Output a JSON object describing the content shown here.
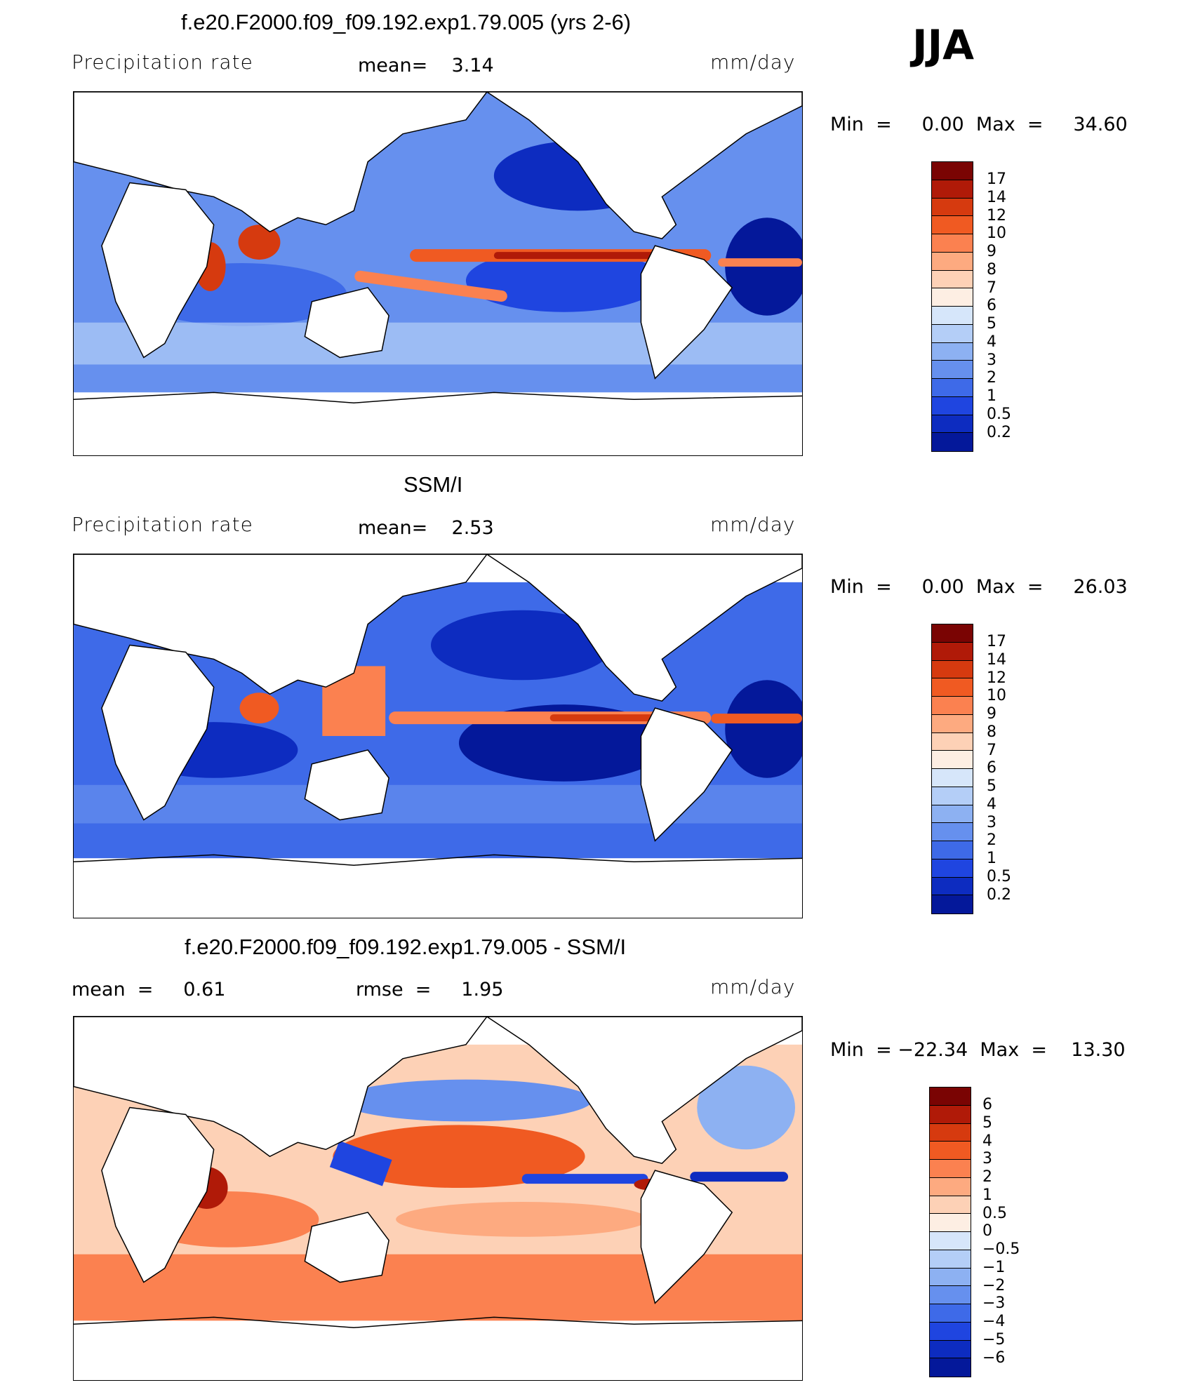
{
  "season": "JJA",
  "panels": [
    {
      "title": "f.e20.F2000.f09_f09.192.exp1.79.005 (yrs 2-6)",
      "left_label": "Precipitation  rate",
      "mid_label": "mean=    3.14",
      "right_label": "mm/day",
      "minmax": "Min  =     0.00  Max  =     34.60",
      "colorbar": {
        "colors": [
          "#7a0403",
          "#b01a08",
          "#d63a0f",
          "#f05a22",
          "#fb8150",
          "#fdaa80",
          "#fdd1b6",
          "#fdeee3",
          "#d6e6fa",
          "#b4cef7",
          "#8db1f2",
          "#6690ee",
          "#3e6ae8",
          "#1f45e0",
          "#0d2cc0",
          "#04189a"
        ],
        "ticks": [
          "17",
          "14",
          "12",
          "10",
          "9",
          "8",
          "7",
          "6",
          "5",
          "4",
          "3",
          "2",
          "1",
          "0.5",
          "0.2"
        ]
      }
    },
    {
      "title": "SSM/I",
      "left_label": "Precipitation  rate",
      "mid_label": "mean=    2.53",
      "right_label": "mm/day",
      "minmax": "Min  =     0.00  Max  =     26.03",
      "colorbar": {
        "colors": [
          "#7a0403",
          "#b01a08",
          "#d63a0f",
          "#f05a22",
          "#fb8150",
          "#fdaa80",
          "#fdd1b6",
          "#fdeee3",
          "#d6e6fa",
          "#b4cef7",
          "#8db1f2",
          "#6690ee",
          "#3e6ae8",
          "#1f45e0",
          "#0d2cc0",
          "#04189a"
        ],
        "ticks": [
          "17",
          "14",
          "12",
          "10",
          "9",
          "8",
          "7",
          "6",
          "5",
          "4",
          "3",
          "2",
          "1",
          "0.5",
          "0.2"
        ]
      }
    },
    {
      "title": "f.e20.F2000.f09_f09.192.exp1.79.005 - SSM/I",
      "left_label": "mean  =     0.61",
      "mid_label": "rmse  =     1.95",
      "right_label": "mm/day",
      "minmax": "Min  = −22.34  Max  =    13.30",
      "colorbar": {
        "colors": [
          "#7a0403",
          "#b01a08",
          "#d63a0f",
          "#f05a22",
          "#fb8150",
          "#fdaa80",
          "#fdd1b6",
          "#fdeee3",
          "#d6e6fa",
          "#b4cef7",
          "#8db1f2",
          "#6690ee",
          "#3e6ae8",
          "#1f45e0",
          "#0d2cc0",
          "#04189a"
        ],
        "ticks": [
          "6",
          "5",
          "4",
          "3",
          "2",
          "1",
          "0.5",
          "0",
          "−0.5",
          "−1",
          "−2",
          "−3",
          "−4",
          "−5",
          "−6"
        ]
      }
    }
  ]
}
